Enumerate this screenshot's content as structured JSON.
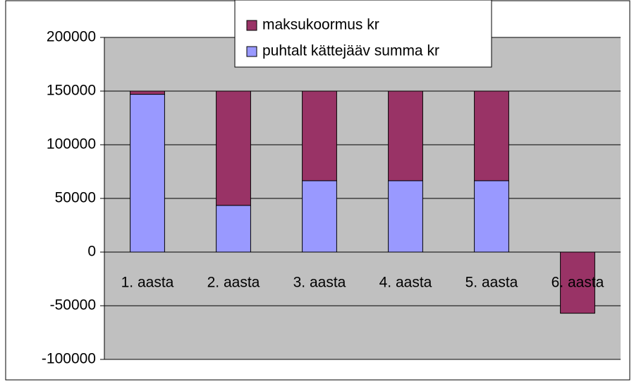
{
  "chart_data": {
    "type": "stacked_bar",
    "categories": [
      "1. aasta",
      "2. aasta",
      "3. aasta",
      "4. aasta",
      "5. aasta",
      "6. aasta"
    ],
    "series": [
      {
        "name": "puhtalt kättejääv summa kr",
        "color": "#9999ff",
        "values": [
          147000,
          43500,
          66500,
          66500,
          66500,
          0
        ]
      },
      {
        "name": "maksukoormus kr",
        "color": "#993366",
        "values": [
          3000,
          106500,
          83500,
          83500,
          83500,
          -57000
        ]
      }
    ],
    "ylim": [
      -100000,
      200000
    ],
    "yticks": [
      -100000,
      -50000,
      0,
      50000,
      100000,
      150000,
      200000
    ],
    "grid": true,
    "legend": "top"
  }
}
